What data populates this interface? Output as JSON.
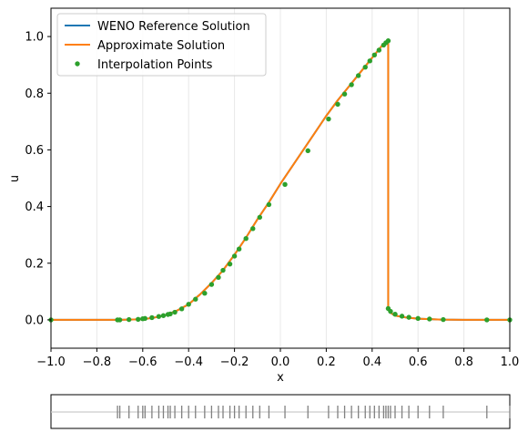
{
  "chart_data": [
    {
      "type": "line",
      "xlabel": "x",
      "ylabel": "u",
      "xlim": [
        -1.0,
        1.0
      ],
      "ylim": [
        -0.1,
        1.1
      ],
      "xticks": [
        "−1.0",
        "−0.8",
        "−0.6",
        "−0.4",
        "−0.2",
        "0.0",
        "0.2",
        "0.4",
        "0.6",
        "0.8",
        "1.0"
      ],
      "xtick_values": [
        -1.0,
        -0.8,
        -0.6,
        -0.4,
        -0.2,
        0.0,
        0.2,
        0.4,
        0.6,
        0.8,
        1.0
      ],
      "yticks": [
        "0.0",
        "0.2",
        "0.4",
        "0.6",
        "0.8",
        "1.0"
      ],
      "ytick_values": [
        0.0,
        0.2,
        0.4,
        0.6,
        0.8,
        1.0
      ],
      "vertical_grid": true,
      "legend_position": "top-left",
      "colors": {
        "reference": "#1f77b4",
        "approx": "#ff7f0e",
        "points": "#2ca02c",
        "grid": "#e8e8e8"
      },
      "series": [
        {
          "name": "WENO Reference Solution",
          "style": "line",
          "x": [
            -1.0,
            -0.7,
            -0.6,
            -0.55,
            -0.5,
            -0.45,
            -0.4,
            -0.35,
            -0.3,
            -0.25,
            -0.2,
            -0.15,
            -0.1,
            -0.05,
            0.0,
            0.05,
            0.1,
            0.15,
            0.2,
            0.25,
            0.3,
            0.35,
            0.4,
            0.44,
            0.47,
            0.47,
            0.48,
            0.5,
            0.55,
            0.6,
            0.7,
            0.8,
            0.9,
            1.0
          ],
          "y": [
            0.0,
            0.0,
            0.002,
            0.008,
            0.017,
            0.033,
            0.055,
            0.09,
            0.13,
            0.175,
            0.23,
            0.29,
            0.355,
            0.415,
            0.48,
            0.54,
            0.6,
            0.66,
            0.72,
            0.775,
            0.825,
            0.875,
            0.925,
            0.965,
            0.985,
            0.04,
            0.025,
            0.015,
            0.008,
            0.004,
            0.001,
            0.0,
            0.0,
            0.0
          ]
        },
        {
          "name": "Approximate Solution",
          "style": "line",
          "x": [
            -1.0,
            -0.7,
            -0.6,
            -0.55,
            -0.5,
            -0.45,
            -0.4,
            -0.35,
            -0.3,
            -0.25,
            -0.2,
            -0.15,
            -0.1,
            -0.05,
            0.0,
            0.05,
            0.1,
            0.15,
            0.2,
            0.25,
            0.3,
            0.35,
            0.4,
            0.44,
            0.47,
            0.47,
            0.48,
            0.5,
            0.55,
            0.6,
            0.7,
            0.8,
            0.9,
            1.0
          ],
          "y": [
            0.0,
            0.0,
            0.002,
            0.008,
            0.017,
            0.033,
            0.055,
            0.09,
            0.13,
            0.175,
            0.23,
            0.29,
            0.355,
            0.415,
            0.48,
            0.54,
            0.6,
            0.66,
            0.72,
            0.775,
            0.825,
            0.875,
            0.925,
            0.965,
            0.985,
            0.04,
            0.025,
            0.015,
            0.008,
            0.004,
            0.001,
            0.0,
            0.0,
            0.0
          ]
        },
        {
          "name": "Interpolation Points",
          "style": "points",
          "x": [
            -1.0,
            -0.71,
            -0.7,
            -0.66,
            -0.62,
            -0.6,
            -0.59,
            -0.56,
            -0.53,
            -0.51,
            -0.49,
            -0.48,
            -0.46,
            -0.43,
            -0.4,
            -0.37,
            -0.33,
            -0.3,
            -0.27,
            -0.25,
            -0.22,
            -0.2,
            -0.18,
            -0.15,
            -0.12,
            -0.09,
            -0.05,
            0.02,
            0.12,
            0.21,
            0.25,
            0.28,
            0.31,
            0.34,
            0.37,
            0.39,
            0.41,
            0.43,
            0.45,
            0.46,
            0.47,
            0.47,
            0.48,
            0.5,
            0.53,
            0.56,
            0.6,
            0.65,
            0.71,
            0.9,
            1.0
          ],
          "y": [
            0.0,
            0.0,
            0.0,
            0.001,
            0.002,
            0.004,
            0.005,
            0.008,
            0.012,
            0.015,
            0.019,
            0.021,
            0.027,
            0.039,
            0.055,
            0.073,
            0.094,
            0.125,
            0.15,
            0.175,
            0.197,
            0.225,
            0.25,
            0.287,
            0.322,
            0.362,
            0.407,
            0.478,
            0.597,
            0.709,
            0.761,
            0.797,
            0.83,
            0.862,
            0.892,
            0.914,
            0.935,
            0.952,
            0.97,
            0.978,
            0.985,
            0.04,
            0.03,
            0.02,
            0.013,
            0.009,
            0.005,
            0.003,
            0.001,
            0.0,
            0.0
          ]
        }
      ]
    },
    {
      "type": "scatter",
      "description_of_marks": "rug",
      "xlim": [
        -1.0,
        1.0
      ],
      "colors": {
        "line": "#cccccc",
        "ticks": "#808080"
      },
      "values": [
        -0.71,
        -0.7,
        -0.66,
        -0.62,
        -0.6,
        -0.59,
        -0.56,
        -0.53,
        -0.51,
        -0.49,
        -0.48,
        -0.46,
        -0.43,
        -0.4,
        -0.37,
        -0.33,
        -0.3,
        -0.27,
        -0.25,
        -0.22,
        -0.2,
        -0.18,
        -0.15,
        -0.12,
        -0.09,
        -0.05,
        0.02,
        0.12,
        0.21,
        0.25,
        0.28,
        0.31,
        0.34,
        0.37,
        0.39,
        0.41,
        0.43,
        0.45,
        0.46,
        0.47,
        0.48,
        0.5,
        0.53,
        0.56,
        0.6,
        0.65,
        0.71,
        0.9,
        1.0
      ]
    }
  ]
}
